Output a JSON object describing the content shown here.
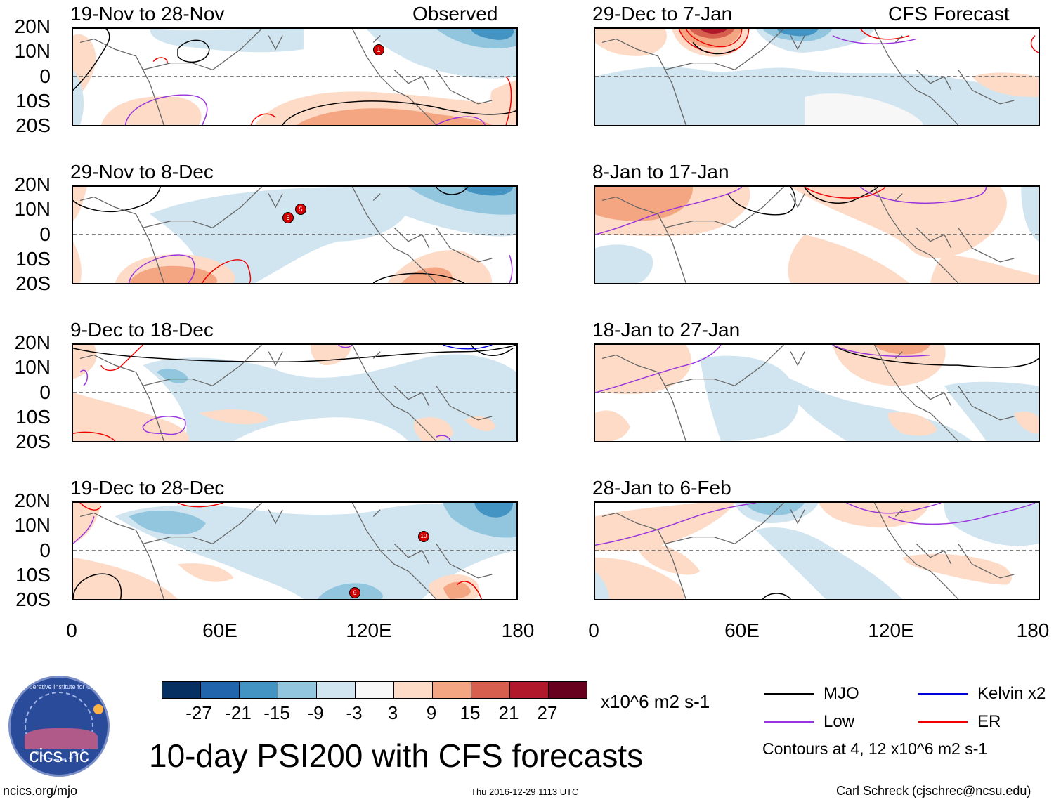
{
  "figure": {
    "title": "10-day PSI200 with CFS forecasts",
    "units": "x10^6 m2 s-1",
    "observed_label": "Observed",
    "forecast_label": "CFS Forecast",
    "footer_left": "ncics.org/mjo",
    "footer_center": "Thu 2016-12-29 1113 UTC",
    "footer_right": "Carl Schreck (cjschrec@ncsu.edu)",
    "contours_note": "Contours at 4, 12 x10^6 m2 s-1",
    "logo_text": "cics.nc",
    "logo_ring_text": "Cooperative Institute for Climate and Satellites"
  },
  "axes": {
    "y_labels": [
      "20N",
      "10N",
      "0",
      "10S",
      "20S"
    ],
    "x_labels": [
      "0",
      "60E",
      "120E",
      "180"
    ]
  },
  "panels": {
    "left": [
      {
        "title": "19-Nov to 28-Nov"
      },
      {
        "title": "29-Nov to 8-Dec"
      },
      {
        "title": "9-Dec to 18-Dec"
      },
      {
        "title": "19-Dec to 28-Dec"
      }
    ],
    "right": [
      {
        "title": "29-Dec to 7-Jan"
      },
      {
        "title": "8-Jan to 17-Jan"
      },
      {
        "title": "18-Jan to 27-Jan"
      },
      {
        "title": "28-Jan to 6-Feb"
      }
    ]
  },
  "colorbar": {
    "labels": [
      "-27",
      "-21",
      "-15",
      "-9",
      "-3",
      "3",
      "9",
      "15",
      "21",
      "27"
    ],
    "colors": [
      "#053061",
      "#2166ac",
      "#4393c3",
      "#92c5de",
      "#d1e5f0",
      "#f7f7f7",
      "#fddbc7",
      "#f4a582",
      "#d6604d",
      "#b2182b",
      "#67001f"
    ]
  },
  "legend": {
    "mjo": "MJO",
    "kelvin": "Kelvin x2",
    "low": "Low",
    "er": "ER",
    "colors": {
      "mjo": "#000000",
      "kelvin": "#0000dd",
      "low": "#9933dd",
      "er": "#ee0000"
    }
  },
  "storm_markers": {
    "observed_1": "1",
    "observed_2a": "5",
    "observed_2b": "5",
    "observed_4a": "10",
    "observed_4b": "9"
  }
}
